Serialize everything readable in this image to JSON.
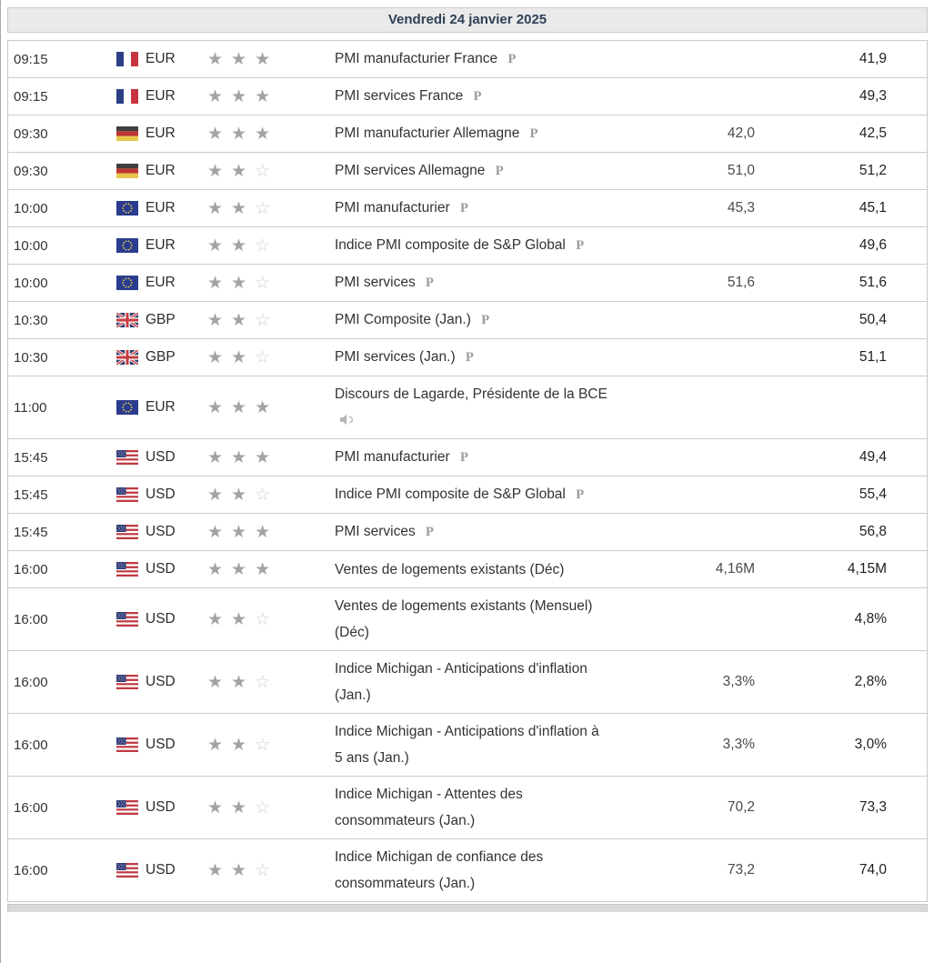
{
  "header": {
    "date_label": "Vendredi 24 janvier 2025"
  },
  "legend": {
    "preliminary_marker": "P"
  },
  "colors": {
    "header_bg": "#eaeaea",
    "header_text": "#2f4156",
    "row_border": "#cccccc",
    "star_filled": "#a3a3a3",
    "star_empty": "#cfcfcf",
    "forecast_text": "#4a4a4a",
    "previous_text": "#1f1f1f"
  },
  "columns": [
    "time",
    "flag",
    "currency",
    "importance",
    "event",
    "forecast",
    "previous"
  ],
  "rows": [
    {
      "time": "09:15",
      "flag": "france-flag-icon",
      "country": "france",
      "currency": "EUR",
      "importance": 3,
      "importance_max": 3,
      "event": "PMI manufacturier France",
      "marker": "P",
      "forecast": "",
      "previous": "41,9"
    },
    {
      "time": "09:15",
      "flag": "france-flag-icon",
      "country": "france",
      "currency": "EUR",
      "importance": 3,
      "importance_max": 3,
      "event": "PMI services France",
      "marker": "P",
      "forecast": "",
      "previous": "49,3"
    },
    {
      "time": "09:30",
      "flag": "germany-flag-icon",
      "country": "germany",
      "currency": "EUR",
      "importance": 3,
      "importance_max": 3,
      "event": "PMI manufacturier Allemagne",
      "marker": "P",
      "forecast": "42,0",
      "previous": "42,5"
    },
    {
      "time": "09:30",
      "flag": "germany-flag-icon",
      "country": "germany",
      "currency": "EUR",
      "importance": 2,
      "importance_max": 3,
      "event": "PMI services Allemagne",
      "marker": "P",
      "forecast": "51,0",
      "previous": "51,2"
    },
    {
      "time": "10:00",
      "flag": "european-union-flag-icon",
      "country": "eurozone",
      "currency": "EUR",
      "importance": 2,
      "importance_max": 3,
      "event": "PMI manufacturier",
      "marker": "P",
      "forecast": "45,3",
      "previous": "45,1"
    },
    {
      "time": "10:00",
      "flag": "european-union-flag-icon",
      "country": "eurozone",
      "currency": "EUR",
      "importance": 2,
      "importance_max": 3,
      "event": "Indice PMI composite de S&P Global",
      "marker": "P",
      "forecast": "",
      "previous": "49,6"
    },
    {
      "time": "10:00",
      "flag": "european-union-flag-icon",
      "country": "eurozone",
      "currency": "EUR",
      "importance": 2,
      "importance_max": 3,
      "event": "PMI services",
      "marker": "P",
      "forecast": "51,6",
      "previous": "51,6"
    },
    {
      "time": "10:30",
      "flag": "united-kingdom-flag-icon",
      "country": "uk",
      "currency": "GBP",
      "importance": 2,
      "importance_max": 3,
      "event": "PMI Composite (Jan.)",
      "marker": "P",
      "forecast": "",
      "previous": "50,4"
    },
    {
      "time": "10:30",
      "flag": "united-kingdom-flag-icon",
      "country": "uk",
      "currency": "GBP",
      "importance": 2,
      "importance_max": 3,
      "event": "PMI services (Jan.)",
      "marker": "P",
      "forecast": "",
      "previous": "51,1"
    },
    {
      "time": "11:00",
      "flag": "european-union-flag-icon",
      "country": "eurozone",
      "currency": "EUR",
      "importance": 3,
      "importance_max": 3,
      "event": "Discours de Lagarde, Présidente de la BCE",
      "marker": "speaker",
      "forecast": "",
      "previous": ""
    },
    {
      "time": "15:45",
      "flag": "united-states-flag-icon",
      "country": "usa",
      "currency": "USD",
      "importance": 3,
      "importance_max": 3,
      "event": "PMI manufacturier",
      "marker": "P",
      "forecast": "",
      "previous": "49,4"
    },
    {
      "time": "15:45",
      "flag": "united-states-flag-icon",
      "country": "usa",
      "currency": "USD",
      "importance": 2,
      "importance_max": 3,
      "event": "Indice PMI composite de S&P Global",
      "marker": "P",
      "forecast": "",
      "previous": "55,4"
    },
    {
      "time": "15:45",
      "flag": "united-states-flag-icon",
      "country": "usa",
      "currency": "USD",
      "importance": 3,
      "importance_max": 3,
      "event": "PMI services",
      "marker": "P",
      "forecast": "",
      "previous": "56,8"
    },
    {
      "time": "16:00",
      "flag": "united-states-flag-icon",
      "country": "usa",
      "currency": "USD",
      "importance": 3,
      "importance_max": 3,
      "event": "Ventes de logements existants (Déc)",
      "marker": "",
      "forecast": "4,16M",
      "previous": "4,15M"
    },
    {
      "time": "16:00",
      "flag": "united-states-flag-icon",
      "country": "usa",
      "currency": "USD",
      "importance": 2,
      "importance_max": 3,
      "event": "Ventes de logements existants (Mensuel) (Déc)",
      "marker": "",
      "forecast": "",
      "previous": "4,8%"
    },
    {
      "time": "16:00",
      "flag": "united-states-flag-icon",
      "country": "usa",
      "currency": "USD",
      "importance": 2,
      "importance_max": 3,
      "event": "Indice Michigan - Anticipations d'inflation (Jan.)",
      "marker": "",
      "forecast": "3,3%",
      "previous": "2,8%"
    },
    {
      "time": "16:00",
      "flag": "united-states-flag-icon",
      "country": "usa",
      "currency": "USD",
      "importance": 2,
      "importance_max": 3,
      "event": "Indice Michigan - Anticipations d'inflation à 5 ans (Jan.)",
      "marker": "",
      "forecast": "3,3%",
      "previous": "3,0%"
    },
    {
      "time": "16:00",
      "flag": "united-states-flag-icon",
      "country": "usa",
      "currency": "USD",
      "importance": 2,
      "importance_max": 3,
      "event": "Indice Michigan - Attentes des consommateurs (Jan.)",
      "marker": "",
      "forecast": "70,2",
      "previous": "73,3"
    },
    {
      "time": "16:00",
      "flag": "united-states-flag-icon",
      "country": "usa",
      "currency": "USD",
      "importance": 2,
      "importance_max": 3,
      "event": "Indice Michigan de confiance des consommateurs (Jan.)",
      "marker": "",
      "forecast": "73,2",
      "previous": "74,0"
    }
  ]
}
